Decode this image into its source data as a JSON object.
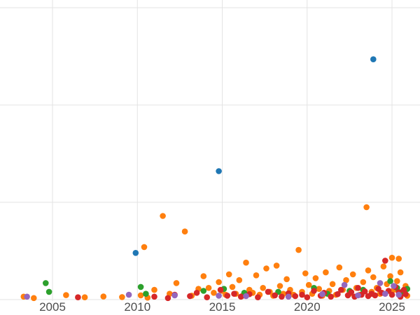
{
  "chart": {
    "background_color": "#ffffff",
    "gridline_color": "#e3e3e3",
    "tick_label_color": "#4d4d4d"
  },
  "chart_data": {
    "type": "scatter",
    "title": "",
    "xlabel": "",
    "ylabel": "",
    "legend": "none (no legend visible)",
    "grid": true,
    "x_ticks": [
      2005,
      2010,
      2015,
      2020,
      2025
    ],
    "x_tick_labels": [
      "2005",
      "2010",
      "2015",
      "2020",
      "2025"
    ],
    "x_range": [
      2001.9,
      2026.6
    ],
    "y_ticks": [
      0,
      50,
      100,
      150
    ],
    "y_tick_labels": [],
    "y_range": [
      0,
      150
    ],
    "note": "y-axis tick labels are not visible in the image; values are estimated in gridline units (one gridline interval = 50)",
    "series": [
      {
        "name": "blue",
        "color": "#1f77b4",
        "points": [
          [
            2009.9,
            24
          ],
          [
            2014.8,
            66
          ],
          [
            2023.9,
            123.5
          ]
        ]
      },
      {
        "name": "orange",
        "color": "#ff7f0e",
        "points": [
          [
            2003.3,
            1.5
          ],
          [
            2003.9,
            0.8
          ],
          [
            2005.8,
            2.3
          ],
          [
            2006.9,
            1.2
          ],
          [
            2008.0,
            1.6
          ],
          [
            2009.1,
            1.3
          ],
          [
            2010.2,
            2.2
          ],
          [
            2010.4,
            27
          ],
          [
            2010.6,
            1.0
          ],
          [
            2011.0,
            5
          ],
          [
            2011.5,
            43
          ],
          [
            2011.9,
            3
          ],
          [
            2012.3,
            8.5
          ],
          [
            2012.8,
            35
          ],
          [
            2013.2,
            2
          ],
          [
            2013.6,
            5.5
          ],
          [
            2013.9,
            12
          ],
          [
            2014.2,
            6
          ],
          [
            2014.5,
            3.5
          ],
          [
            2014.8,
            9
          ],
          [
            2015.0,
            4.5
          ],
          [
            2015.2,
            2.5
          ],
          [
            2015.4,
            13
          ],
          [
            2015.6,
            6.5
          ],
          [
            2015.8,
            3
          ],
          [
            2016.0,
            10
          ],
          [
            2016.2,
            2
          ],
          [
            2016.4,
            19
          ],
          [
            2016.6,
            5
          ],
          [
            2016.8,
            3.5
          ],
          [
            2017.0,
            12.5
          ],
          [
            2017.2,
            2.5
          ],
          [
            2017.4,
            6
          ],
          [
            2017.6,
            16
          ],
          [
            2017.8,
            4
          ],
          [
            2018.0,
            2
          ],
          [
            2018.2,
            17.5
          ],
          [
            2018.4,
            7
          ],
          [
            2018.6,
            3
          ],
          [
            2018.8,
            10.5
          ],
          [
            2019.0,
            5
          ],
          [
            2019.2,
            2.5
          ],
          [
            2019.5,
            25.5
          ],
          [
            2019.7,
            4
          ],
          [
            2019.9,
            13.5
          ],
          [
            2020.1,
            7.5
          ],
          [
            2020.3,
            3
          ],
          [
            2020.5,
            11
          ],
          [
            2020.7,
            5.5
          ],
          [
            2020.9,
            2
          ],
          [
            2021.1,
            14
          ],
          [
            2021.3,
            4.5
          ],
          [
            2021.5,
            8
          ],
          [
            2021.7,
            2.5
          ],
          [
            2021.9,
            16.5
          ],
          [
            2022.1,
            5
          ],
          [
            2022.3,
            10
          ],
          [
            2022.5,
            3
          ],
          [
            2022.7,
            13
          ],
          [
            2022.9,
            6
          ],
          [
            2023.1,
            2.5
          ],
          [
            2023.3,
            9
          ],
          [
            2023.5,
            47.5
          ],
          [
            2023.6,
            15
          ],
          [
            2023.8,
            4
          ],
          [
            2023.9,
            11.5
          ],
          [
            2024.1,
            6
          ],
          [
            2024.3,
            3
          ],
          [
            2024.5,
            17
          ],
          [
            2024.7,
            8
          ],
          [
            2024.9,
            12
          ],
          [
            2025.0,
            21.5
          ],
          [
            2025.1,
            5
          ],
          [
            2025.3,
            9.5
          ],
          [
            2025.4,
            21
          ],
          [
            2025.5,
            14
          ],
          [
            2025.6,
            3.5
          ],
          [
            2025.8,
            7
          ],
          [
            2025.9,
            2
          ]
        ]
      },
      {
        "name": "green",
        "color": "#2ca02c",
        "points": [
          [
            2004.6,
            8.5
          ],
          [
            2004.8,
            4
          ],
          [
            2010.2,
            6.5
          ],
          [
            2010.5,
            3
          ],
          [
            2013.9,
            4.5
          ],
          [
            2015.1,
            5.5
          ],
          [
            2016.3,
            3.5
          ],
          [
            2018.3,
            4
          ],
          [
            2020.4,
            6
          ],
          [
            2021.2,
            3
          ],
          [
            2022.5,
            4.5
          ],
          [
            2023.3,
            5
          ],
          [
            2024.9,
            9.5
          ],
          [
            2025.3,
            6
          ],
          [
            2025.6,
            4
          ],
          [
            2025.9,
            5.5
          ]
        ]
      },
      {
        "name": "red",
        "color": "#d62728",
        "points": [
          [
            2006.5,
            1.2
          ],
          [
            2011.0,
            1.5
          ],
          [
            2011.8,
            0.8
          ],
          [
            2012.2,
            2.5
          ],
          [
            2013.1,
            1.8
          ],
          [
            2013.5,
            3.5
          ],
          [
            2014.1,
            1.2
          ],
          [
            2014.9,
            5
          ],
          [
            2015.3,
            2
          ],
          [
            2015.7,
            3
          ],
          [
            2016.1,
            1.5
          ],
          [
            2016.6,
            2.8
          ],
          [
            2017.1,
            1.2
          ],
          [
            2017.7,
            4
          ],
          [
            2018.1,
            2.2
          ],
          [
            2018.5,
            1.5
          ],
          [
            2018.9,
            3.2
          ],
          [
            2019.3,
            1.8
          ],
          [
            2019.7,
            2.5
          ],
          [
            2020.0,
            1.2
          ],
          [
            2020.4,
            4.5
          ],
          [
            2020.8,
            2
          ],
          [
            2021.0,
            3.5
          ],
          [
            2021.4,
            1.5
          ],
          [
            2021.8,
            2.8
          ],
          [
            2022.0,
            5
          ],
          [
            2022.4,
            2.2
          ],
          [
            2022.6,
            3.8
          ],
          [
            2022.8,
            1.5
          ],
          [
            2023.0,
            6
          ],
          [
            2023.2,
            2.5
          ],
          [
            2023.4,
            4.2
          ],
          [
            2023.6,
            1.8
          ],
          [
            2023.8,
            3
          ],
          [
            2024.0,
            2.2
          ],
          [
            2024.2,
            5.5
          ],
          [
            2024.4,
            3.5
          ],
          [
            2024.6,
            20
          ],
          [
            2024.8,
            4.5
          ],
          [
            2025.0,
            2.5
          ],
          [
            2025.2,
            6.5
          ],
          [
            2025.4,
            3.8
          ],
          [
            2025.5,
            1.5
          ],
          [
            2025.7,
            5
          ],
          [
            2025.8,
            2.8
          ]
        ]
      },
      {
        "name": "purple",
        "color": "#9467bd",
        "points": [
          [
            2003.5,
            1.5
          ],
          [
            2009.5,
            2.5
          ],
          [
            2012.2,
            2.2
          ],
          [
            2014.8,
            2
          ],
          [
            2016.4,
            1.8
          ],
          [
            2018.9,
            1.5
          ],
          [
            2020.9,
            2.8
          ],
          [
            2022.2,
            7.5
          ],
          [
            2023.0,
            2.2
          ],
          [
            2024.3,
            8.5
          ],
          [
            2024.6,
            3
          ],
          [
            2025.1,
            7
          ],
          [
            2025.4,
            2.5
          ]
        ]
      }
    ]
  }
}
